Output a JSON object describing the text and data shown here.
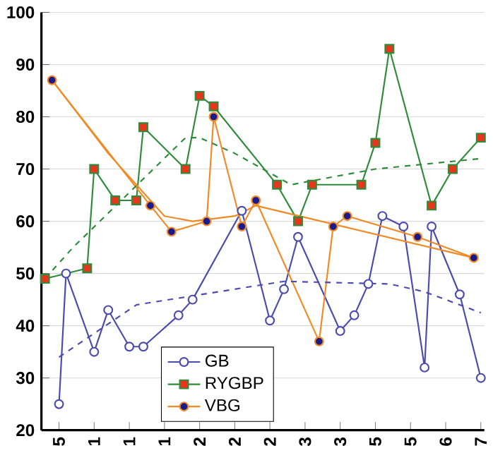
{
  "chart_data": {
    "type": "line",
    "categories": [
      null,
      null,
      "5",
      null,
      null,
      null,
      null,
      "1",
      null,
      null,
      null,
      null,
      "1",
      null,
      null,
      null,
      null,
      "1",
      null,
      null,
      null,
      null,
      "2",
      null,
      null,
      null,
      null,
      "2",
      null,
      null,
      null,
      null,
      "2",
      null,
      null,
      null,
      null,
      "3",
      null,
      null,
      null,
      null,
      "3",
      null,
      null,
      null,
      null,
      "5",
      null,
      null,
      null,
      null,
      "5",
      null,
      null,
      null,
      null,
      "6",
      null,
      null,
      null,
      null,
      "7"
    ],
    "ylim": [
      20,
      100
    ],
    "yticks": [
      20,
      30,
      40,
      50,
      60,
      70,
      80,
      90,
      100
    ],
    "grid": "y",
    "legend": "bottom",
    "series": [
      {
        "name": "GB",
        "color": "#4b4bad",
        "marker": "circle",
        "values": [
          null,
          null,
          25,
          50,
          null,
          null,
          null,
          35,
          null,
          43,
          null,
          null,
          36,
          null,
          36,
          null,
          null,
          null,
          null,
          42,
          null,
          45,
          null,
          null,
          null,
          null,
          null,
          null,
          62,
          null,
          null,
          null,
          41,
          null,
          47,
          null,
          57,
          null,
          null,
          null,
          null,
          null,
          39,
          null,
          42,
          null,
          48,
          null,
          61,
          null,
          null,
          59,
          null,
          null,
          32,
          59,
          null,
          null,
          null,
          46,
          null,
          null,
          30
        ],
        "colors": [
          null,
          null,
          "#ffffff",
          "#ffffff",
          null,
          null,
          null,
          "#ffffff",
          null,
          "#ffffff",
          null,
          null,
          "#ffffff",
          null,
          "#ffffff",
          null,
          null,
          null,
          null,
          "#ffffff",
          null,
          "#ffffff",
          null,
          null,
          null,
          null,
          null,
          null,
          "#ffffff",
          null,
          null,
          null,
          "#ffffff",
          null,
          "#ffffff",
          null,
          "#ffffff",
          null,
          null,
          null,
          null,
          null,
          "#ffffff",
          null,
          "#ffffff",
          null,
          "#ffffff",
          null,
          "#ffffff",
          null,
          null,
          "#ffffff",
          null,
          null,
          "#ffffff",
          "#ffffff",
          null,
          null,
          null,
          "#ffffff",
          null,
          null,
          "#ffffff"
        ]
      },
      {
        "name": "RYGBP",
        "color": "#2e8b3a",
        "marker": "square",
        "values": [
          49,
          null,
          null,
          null,
          null,
          null,
          51,
          70,
          null,
          null,
          64,
          null,
          null,
          64,
          78,
          null,
          null,
          null,
          null,
          null,
          70,
          null,
          84,
          null,
          82,
          null,
          null,
          null,
          null,
          null,
          null,
          null,
          null,
          67,
          null,
          null,
          60,
          null,
          67,
          null,
          null,
          null,
          null,
          null,
          null,
          67,
          null,
          75,
          null,
          93,
          null,
          null,
          null,
          null,
          null,
          63,
          null,
          null,
          70,
          null,
          null,
          null,
          76
        ],
        "colors": [
          "#e8361c",
          null,
          null,
          null,
          null,
          null,
          "#e8361c",
          "#e8361c",
          null,
          null,
          "#e8361c",
          null,
          null,
          "#e8361c",
          "#e8361c",
          null,
          null,
          null,
          null,
          null,
          "#e8361c",
          null,
          "#e8361c",
          null,
          "#e8361c",
          null,
          null,
          null,
          null,
          null,
          null,
          null,
          null,
          "#e8361c",
          null,
          null,
          "#e8361c",
          null,
          "#e8361c",
          null,
          null,
          null,
          null,
          null,
          null,
          "#e8361c",
          null,
          "#e8361c",
          null,
          "#e8361c",
          null,
          null,
          null,
          null,
          null,
          "#e8361c",
          null,
          null,
          "#e8361c",
          null,
          null,
          null,
          "#e8361c"
        ]
      },
      {
        "name": "VBG",
        "color": "#f08a24",
        "marker": "circle",
        "values": [
          null,
          87,
          null,
          null,
          null,
          null,
          null,
          null,
          null,
          null,
          null,
          null,
          null,
          null,
          null,
          63,
          null,
          null,
          58,
          null,
          null,
          null,
          null,
          60,
          80,
          null,
          null,
          null,
          59,
          null,
          64,
          null,
          null,
          null,
          null,
          null,
          null,
          null,
          null,
          37,
          null,
          59,
          null,
          61,
          null,
          null,
          null,
          null,
          null,
          null,
          null,
          null,
          null,
          57,
          null,
          null,
          null,
          null,
          null,
          null,
          null,
          53,
          null
        ],
        "colors": [
          null,
          "#1a1a8c",
          null,
          null,
          null,
          null,
          null,
          null,
          null,
          null,
          null,
          null,
          null,
          null,
          null,
          "#1a1a8c",
          null,
          null,
          "#1a1a8c",
          null,
          null,
          null,
          null,
          "#1a1a8c",
          "#1a1a8c",
          null,
          null,
          null,
          "#1a1a8c",
          null,
          "#1a1a8c",
          null,
          null,
          null,
          null,
          null,
          null,
          null,
          null,
          "#1a1a8c",
          null,
          "#1a1a8c",
          null,
          "#1a1a8c",
          null,
          null,
          null,
          null,
          null,
          null,
          null,
          null,
          null,
          "#1a1a8c",
          null,
          null,
          null,
          null,
          null,
          null,
          null,
          "#1a1a8c",
          null
        ]
      },
      {
        "color": "#4b4bad",
        "marker": "none",
        "line_style": "dashed",
        "values": [
          null,
          null,
          34,
          null,
          null,
          null,
          null,
          null,
          null,
          null,
          null,
          null,
          null,
          44,
          null,
          null,
          null,
          null,
          null,
          null,
          null,
          null,
          null,
          null,
          null,
          null,
          null,
          47,
          null,
          null,
          null,
          null,
          null,
          null,
          48.5,
          null,
          null,
          null,
          null,
          null,
          null,
          null,
          null,
          null,
          null,
          null,
          null,
          null,
          null,
          48,
          null,
          null,
          null,
          null,
          46.5,
          null,
          null,
          null,
          null,
          null,
          null,
          null,
          42.5
        ]
      },
      {
        "color": "#2e8b3a",
        "marker": "none",
        "line_style": "dashed",
        "values": [
          49,
          null,
          null,
          null,
          55,
          null,
          null,
          null,
          null,
          null,
          null,
          null,
          null,
          null,
          null,
          null,
          null,
          null,
          null,
          null,
          76,
          null,
          76,
          null,
          null,
          null,
          null,
          73,
          null,
          null,
          null,
          null,
          null,
          null,
          null,
          67,
          null,
          null,
          null,
          null,
          null,
          null,
          null,
          null,
          null,
          null,
          null,
          70,
          null,
          null,
          null,
          null,
          null,
          null,
          null,
          null,
          null,
          null,
          null,
          null,
          null,
          null,
          72
        ]
      },
      {
        "color": "#f08a24",
        "marker": "none",
        "line_style": "solid",
        "values": [
          null,
          87,
          null,
          null,
          null,
          null,
          null,
          null,
          null,
          73,
          null,
          null,
          null,
          null,
          null,
          null,
          null,
          61,
          null,
          null,
          null,
          60,
          null,
          null,
          null,
          null,
          null,
          61,
          null,
          null,
          63,
          null,
          null,
          null,
          null,
          null,
          null,
          null,
          null,
          null,
          null,
          null,
          null,
          null,
          null,
          null,
          null,
          null,
          null,
          null,
          null,
          null,
          null,
          null,
          null,
          null,
          null,
          null,
          null,
          null,
          null,
          53,
          null
        ]
      }
    ]
  }
}
